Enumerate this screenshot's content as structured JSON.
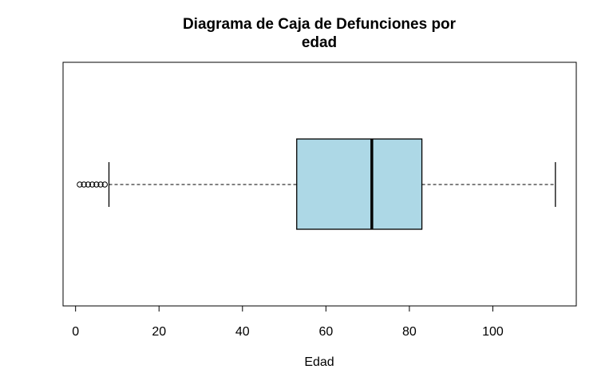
{
  "chart_data": {
    "type": "boxplot",
    "orientation": "horizontal",
    "title_lines": [
      "Diagrama de Caja de Defunciones por",
      "edad"
    ],
    "xlabel": "Edad",
    "xlim": [
      -3,
      120
    ],
    "x_ticks": [
      0,
      20,
      40,
      60,
      80,
      100
    ],
    "x_tick_labels": [
      "0",
      "20",
      "40",
      "60",
      "80",
      "100"
    ],
    "box": {
      "whisker_low": 8,
      "q1": 53,
      "median": 71,
      "q3": 83,
      "whisker_high": 115
    },
    "outliers": [
      1,
      2,
      3,
      4,
      5,
      6,
      7
    ],
    "colors": {
      "box_fill": "#add8e6",
      "line": "#000000"
    },
    "grid": false,
    "legend": "none"
  }
}
